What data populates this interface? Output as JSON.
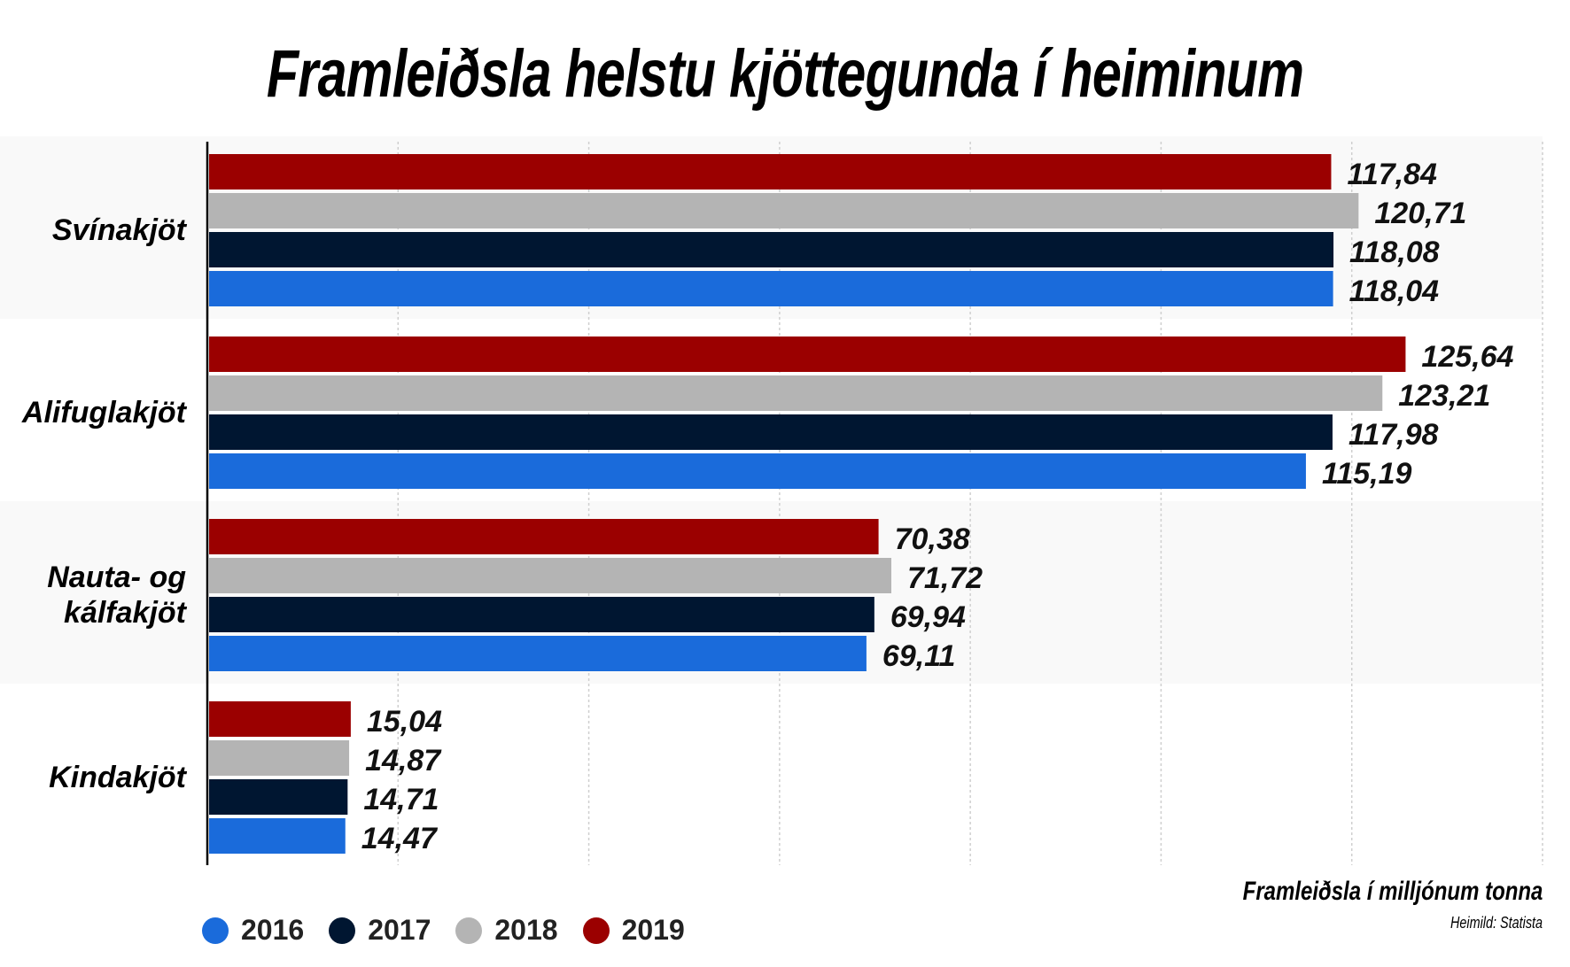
{
  "chart_data": {
    "type": "bar",
    "orientation": "horizontal",
    "title": "Framleiðsla helstu kjöttegunda í heiminum",
    "xlabel": "Framleiðsla í milljónum tonna",
    "source": "Heimild: Statista",
    "categories": [
      "Svínakjöt",
      "Alifuglakjöt",
      "Nauta- og kálfakjöt",
      "Kindakjöt"
    ],
    "series": [
      {
        "name": "2019",
        "color": "#9b0000",
        "values": [
          117.84,
          125.64,
          70.38,
          15.04
        ],
        "labels": [
          "117,84",
          "125,64",
          "70,38",
          "15,04"
        ]
      },
      {
        "name": "2018",
        "color": "#b4b4b4",
        "values": [
          120.71,
          123.21,
          71.72,
          14.87
        ],
        "labels": [
          "120,71",
          "123,21",
          "71,72",
          "14,87"
        ]
      },
      {
        "name": "2017",
        "color": "#001631",
        "values": [
          118.08,
          117.98,
          69.94,
          14.71
        ],
        "labels": [
          "118,08",
          "117,98",
          "69,94",
          "14,71"
        ]
      },
      {
        "name": "2016",
        "color": "#1a6bdb",
        "values": [
          118.04,
          115.19,
          69.11,
          14.47
        ],
        "labels": [
          "118,04",
          "115,19",
          "69,11",
          "14,47"
        ]
      }
    ],
    "legend_order": [
      "2016",
      "2017",
      "2018",
      "2019"
    ],
    "xlim": [
      0,
      140
    ],
    "grid": "vertical dashed every 20",
    "legend": "bottom-left"
  }
}
